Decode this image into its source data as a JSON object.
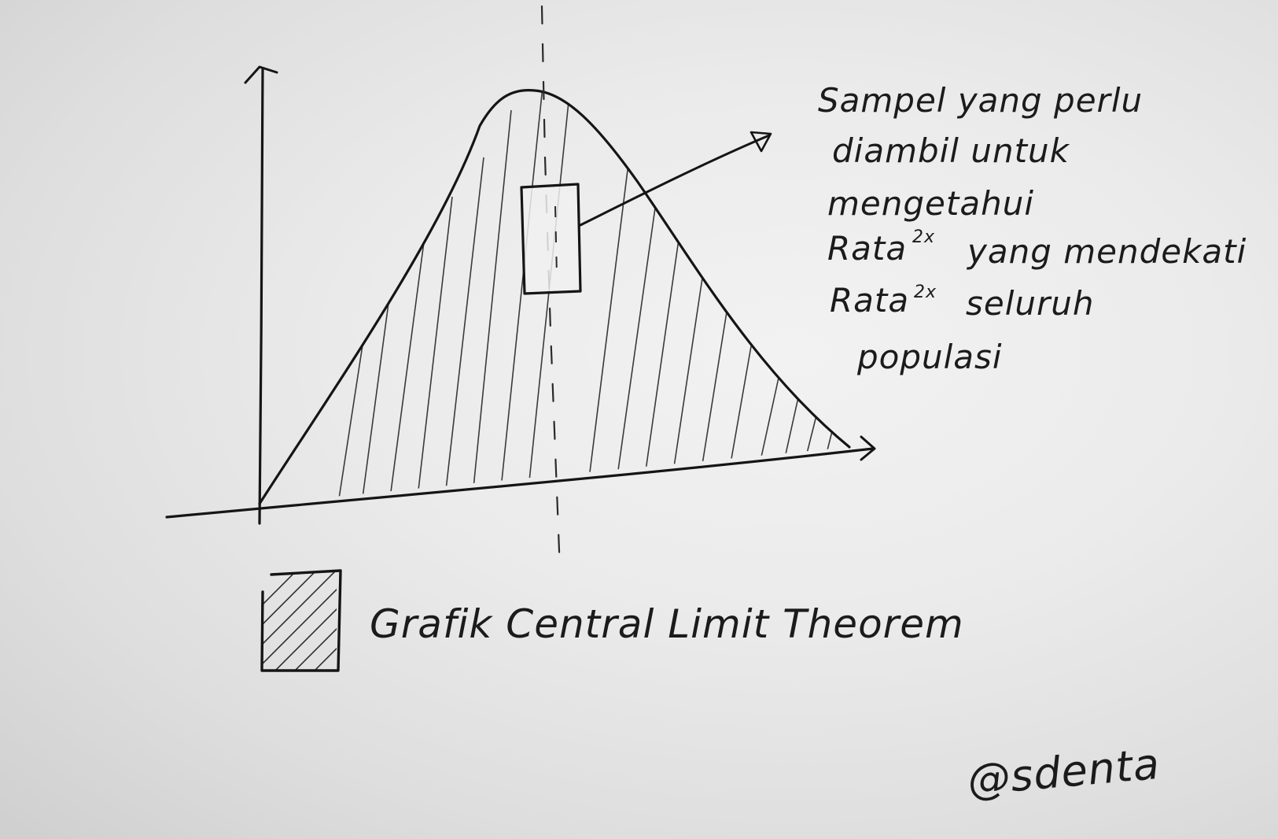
{
  "annotation": {
    "line1": "Sampel yang perlu",
    "line2": "diambil untuk",
    "line3": "mengetahui",
    "line4_word": "Rata",
    "line4_sup": "2x",
    "line4_rest": "yang mendekati",
    "line5_word": "Rata",
    "line5_sup": "2x",
    "line5_rest": "seluruh",
    "line6": "populasi"
  },
  "legend": {
    "label": "Grafik Central Limit Theorem"
  },
  "credit": "@sdenta",
  "colors": {
    "ink": "#1b1b1b",
    "board": "#ebebeb"
  }
}
